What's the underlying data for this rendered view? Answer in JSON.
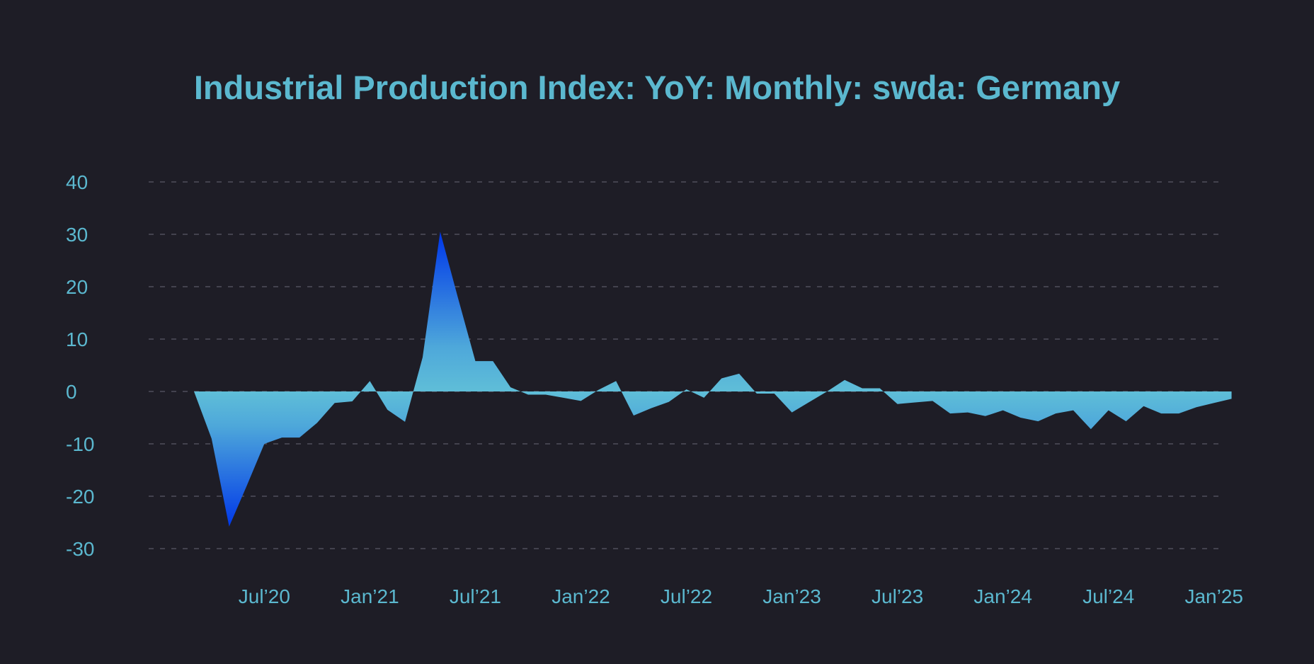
{
  "chart_data": {
    "type": "area",
    "title": "Industrial Production Index: YoY: Monthly: swda: Germany",
    "xlabel": "",
    "ylabel": "",
    "ylim": [
      -30,
      40
    ],
    "yticks": [
      40,
      30,
      20,
      10,
      0,
      -10,
      -20,
      -30
    ],
    "grid": true,
    "x_start": "2020-03",
    "x_end": "2024-12",
    "xticks": [
      {
        "label": "Jul’20",
        "date": "2020-07"
      },
      {
        "label": "Jan’21",
        "date": "2021-01"
      },
      {
        "label": "Jul’21",
        "date": "2021-07"
      },
      {
        "label": "Jan’22",
        "date": "2022-01"
      },
      {
        "label": "Jul’22",
        "date": "2022-07"
      },
      {
        "label": "Jan’23",
        "date": "2023-01"
      },
      {
        "label": "Jul’23",
        "date": "2023-07"
      },
      {
        "label": "Jan’24",
        "date": "2024-01"
      },
      {
        "label": "Jul’24",
        "date": "2024-07"
      },
      {
        "label": "Jan’25",
        "date": "2025-01"
      }
    ],
    "series": [
      {
        "name": "Industrial Production Index YoY",
        "values": [
          0.0,
          -9.0,
          -25.8,
          -18.0,
          -10.0,
          -8.8,
          -8.8,
          -6.0,
          -2.2,
          -1.9,
          2.0,
          -3.5,
          -5.8,
          6.5,
          30.5,
          18.0,
          5.8,
          5.8,
          0.8,
          -0.6,
          -0.6,
          -1.2,
          -1.8,
          0.3,
          2.0,
          -4.6,
          -3.2,
          -2.0,
          0.4,
          -1.2,
          2.5,
          3.4,
          -0.4,
          -0.4,
          -4.0,
          -2.0,
          0.0,
          2.2,
          0.6,
          0.6,
          -2.4,
          -2.1,
          -1.8,
          -4.2,
          -4.0,
          -4.7,
          -3.6,
          -5.0,
          -5.7,
          -4.2,
          -3.6,
          -7.2,
          -3.6,
          -5.7,
          -2.8,
          -4.2,
          -4.2,
          -3.0,
          -2.2,
          -1.4
        ]
      }
    ],
    "colors": {
      "background": "#1e1d26",
      "text": "#5bb8cf",
      "fill_light": "#5fbed8",
      "fill_dark": "#0039e6"
    }
  }
}
